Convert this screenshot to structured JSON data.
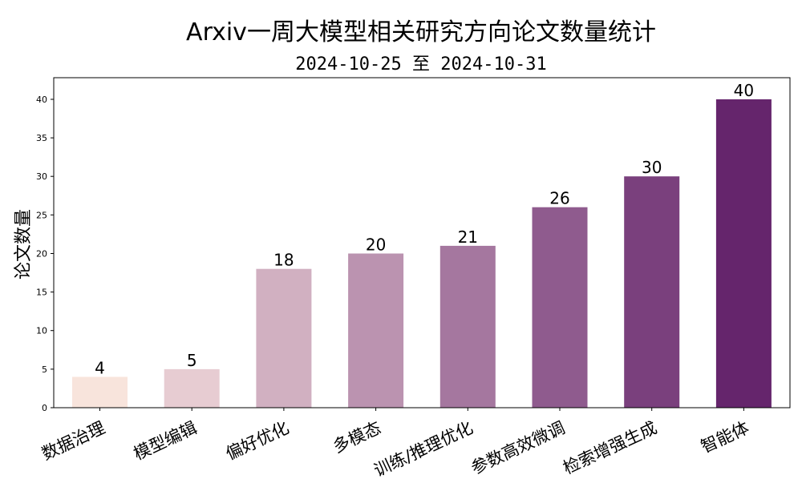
{
  "chart_data": {
    "type": "bar",
    "title": "Arxiv一周大模型相关研究方向论文数量统计",
    "subtitle": "2024-10-25 至 2024-10-31",
    "xlabel": "",
    "ylabel": "论文数量",
    "ylim": [
      0,
      42.8
    ],
    "yticks": [
      0,
      5,
      10,
      15,
      20,
      25,
      30,
      35,
      40
    ],
    "grid": false,
    "categories": [
      "数据治理",
      "模型编辑",
      "偏好优化",
      "多模态",
      "训练/推理优化",
      "参数高效微调",
      "检索增强生成",
      "智能体"
    ],
    "values": [
      4,
      5,
      18,
      20,
      21,
      26,
      30,
      40
    ],
    "colors": [
      "#f8e4dc",
      "#e7ccd2",
      "#d1b0c1",
      "#bb93b0",
      "#a5779f",
      "#8f5b8e",
      "#7a407d",
      "#65256c"
    ]
  }
}
